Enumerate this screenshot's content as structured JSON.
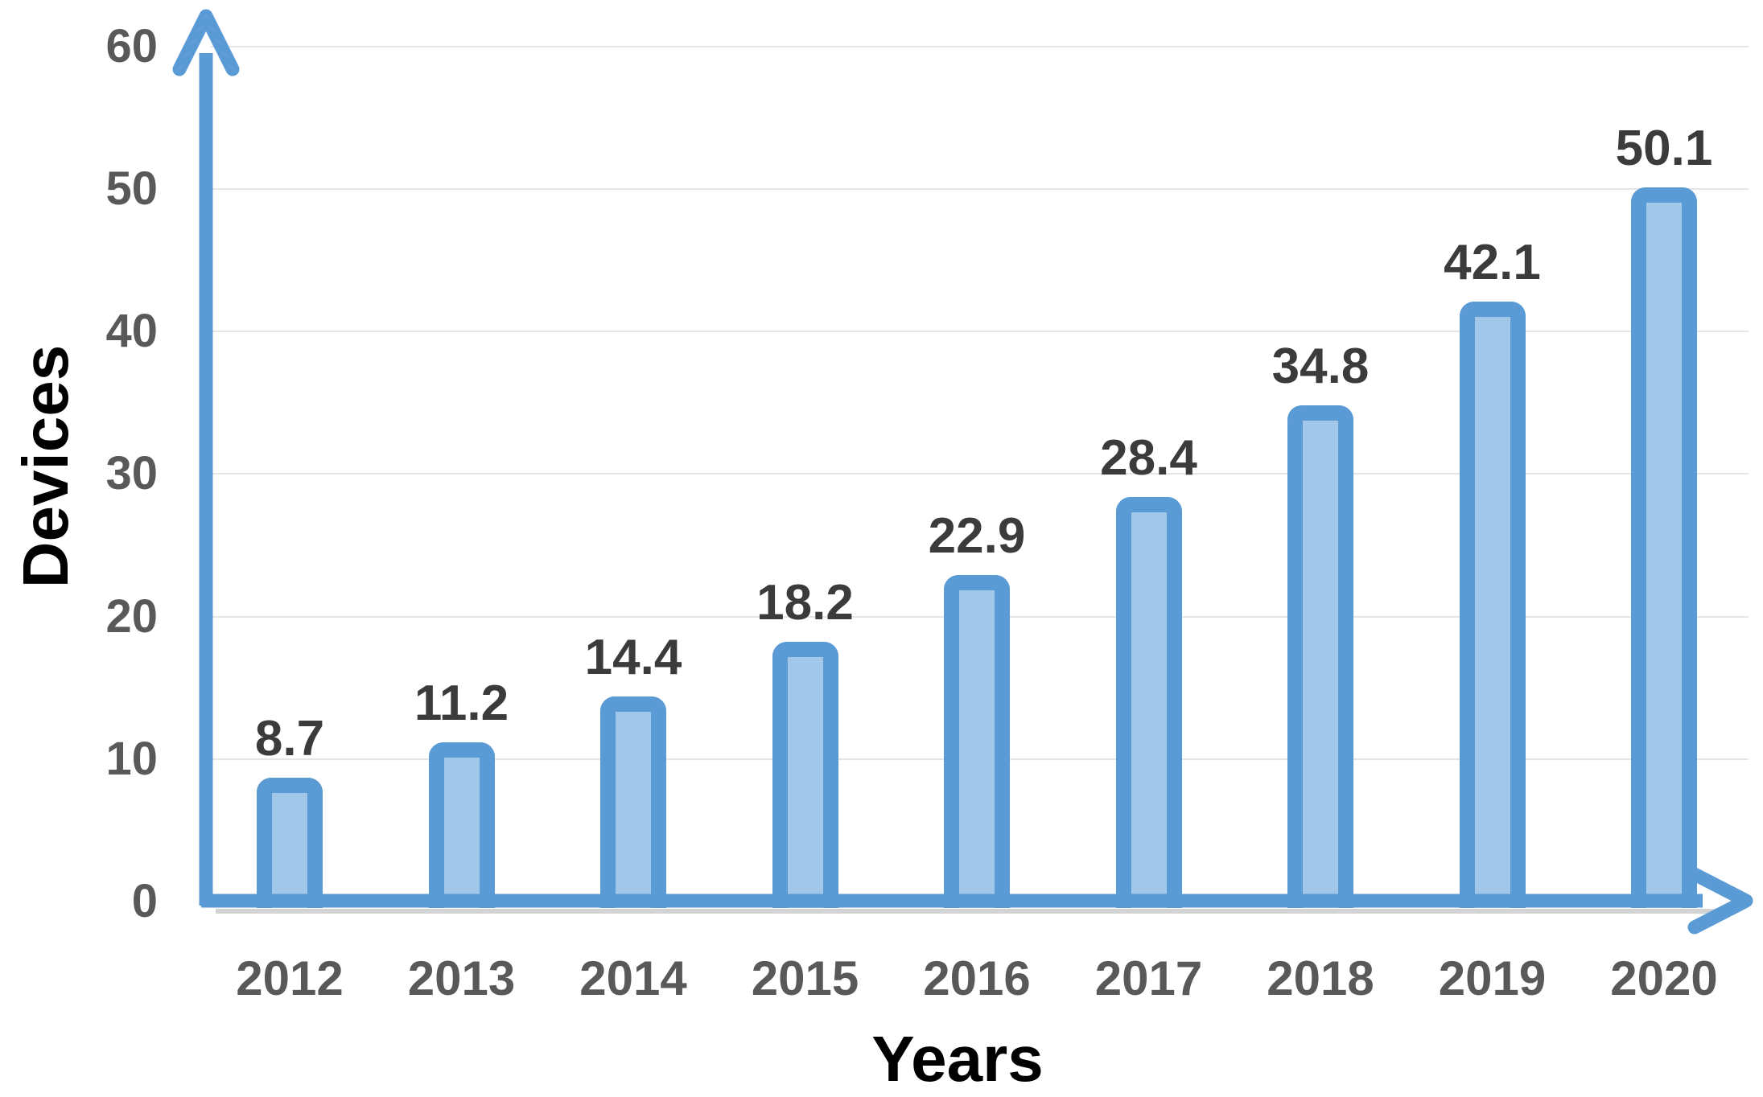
{
  "chart_data": {
    "type": "bar",
    "categories": [
      "2012",
      "2013",
      "2014",
      "2015",
      "2016",
      "2017",
      "2018",
      "2019",
      "2020"
    ],
    "values": [
      8.7,
      11.2,
      14.4,
      18.2,
      22.9,
      28.4,
      34.8,
      42.1,
      50.1
    ],
    "value_labels": [
      "8.7",
      "11.2",
      "14.4",
      "18.2",
      "22.9",
      "28.4",
      "34.8",
      "42.1",
      "50.1"
    ],
    "title": "",
    "xlabel": "Years",
    "ylabel": "Devices",
    "yticks": [
      0,
      10,
      20,
      30,
      40,
      50,
      60
    ],
    "ylim": [
      0,
      63
    ],
    "grid": "horizontal-light",
    "legend": false,
    "data_labels": "above-bars",
    "colors": {
      "bar_fill": "#a3c7e9",
      "bar_border": "#5b9bd5",
      "axis": "#5b9bd5",
      "axis_shadow": "#a8a8a8",
      "gridline": "#e5e5e7",
      "tick_label": "#595959",
      "value_label": "#3b3b3b",
      "axis_title": "#000000",
      "background": "#ffffff"
    }
  }
}
